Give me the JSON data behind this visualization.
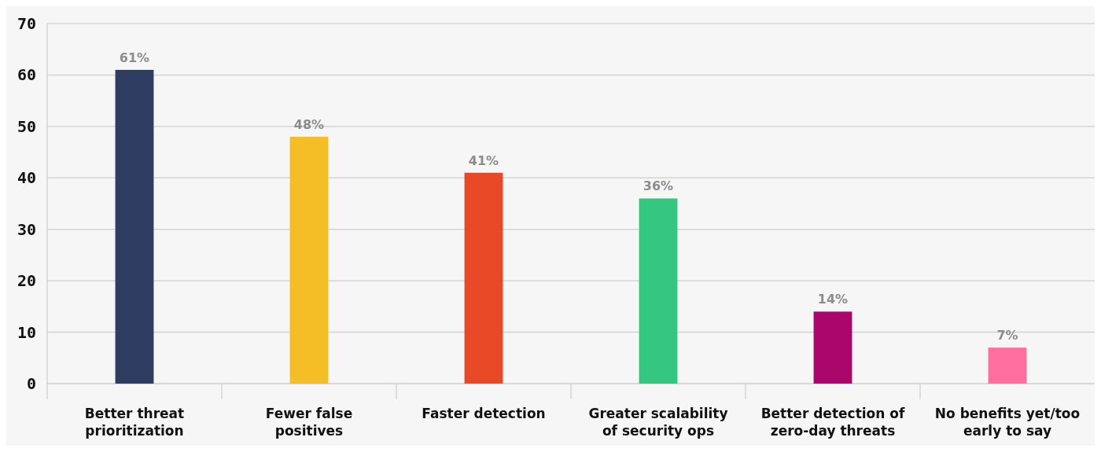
{
  "chart_data": {
    "type": "bar",
    "categories": [
      "Better threat prioritization",
      "Fewer false positives",
      "Faster detection",
      "Greater scalability of security ops",
      "Better detection of zero-day threats",
      "No benefits yet/too early to say"
    ],
    "values": [
      61,
      48,
      41,
      36,
      14,
      7
    ],
    "value_labels": [
      "61%",
      "48%",
      "41%",
      "36%",
      "14%",
      "7%"
    ],
    "colors": [
      "#2e3c62",
      "#f5bd26",
      "#e84a27",
      "#34c77f",
      "#ab066c",
      "#fe6e9f"
    ],
    "ylim": [
      0,
      70
    ],
    "yticks": [
      0,
      10,
      20,
      30,
      40,
      50,
      60,
      70
    ],
    "grid": "y"
  }
}
